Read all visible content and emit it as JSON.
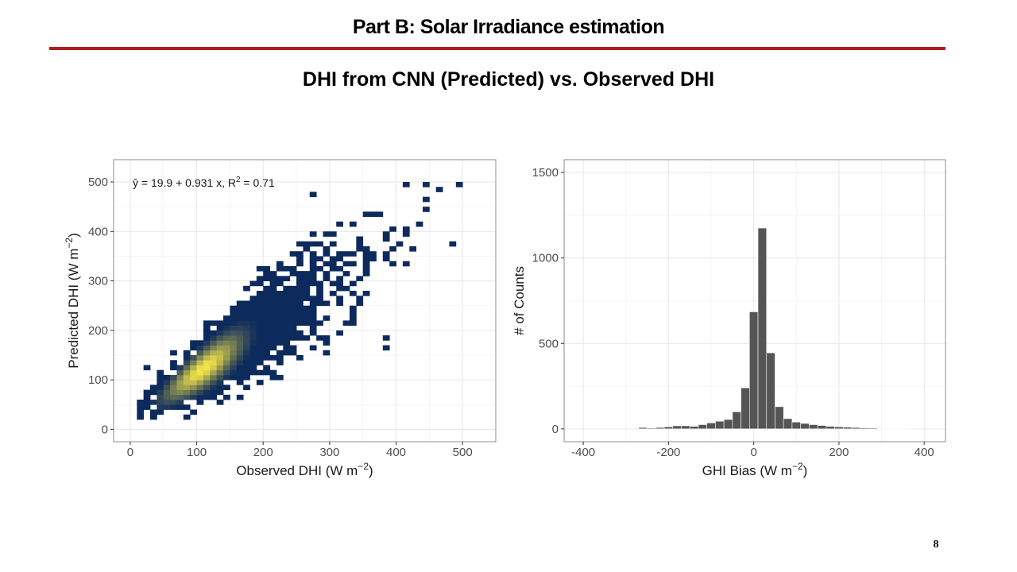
{
  "slide": {
    "title": "Part B: Solar Irradiance estimation",
    "subtitle": "DHI from CNN (Predicted) vs. Observed DHI",
    "page_number": "8",
    "accent_color": "#b01e1e"
  },
  "chart_data": [
    {
      "type": "heatmap",
      "subtype": "2d-histogram-scatter",
      "title": "",
      "xlabel": "Observed DHI (W m⁻²)",
      "ylabel": "Predicted DHI (W m⁻²)",
      "xlim": [
        -25,
        550
      ],
      "ylim": [
        -25,
        545
      ],
      "xticks": [
        0,
        100,
        200,
        300,
        400,
        500
      ],
      "yticks": [
        0,
        100,
        200,
        300,
        400,
        500
      ],
      "grid": true,
      "bin_width": 10,
      "color_low": "#0d2a5c",
      "color_high": "#f2e34a",
      "annotation": {
        "text": "ŷ = 19.9 + 0.931 x, R² = 0.71",
        "intercept": 19.9,
        "slope": 0.931,
        "r2": 0.71
      }
    },
    {
      "type": "bar",
      "subtype": "histogram",
      "title": "",
      "xlabel": "GHI Bias (W m⁻²)",
      "ylabel": "# of Counts",
      "xlim": [
        -445,
        450
      ],
      "ylim": [
        -75,
        1575
      ],
      "xticks": [
        -400,
        -200,
        0,
        200,
        400
      ],
      "yticks": [
        0,
        500,
        1000,
        1500
      ],
      "grid": true,
      "bar_color": "#555555",
      "bin_width": 20,
      "bin_centers": [
        -260,
        -240,
        -220,
        -200,
        -180,
        -160,
        -140,
        -120,
        -100,
        -80,
        -60,
        -40,
        -20,
        0,
        20,
        40,
        60,
        80,
        100,
        120,
        140,
        160,
        180,
        200,
        220,
        240,
        260,
        280,
        300,
        320,
        340,
        360
      ],
      "counts": [
        8,
        5,
        8,
        12,
        18,
        18,
        15,
        25,
        35,
        45,
        55,
        100,
        240,
        685,
        1175,
        445,
        130,
        60,
        40,
        32,
        25,
        20,
        15,
        12,
        10,
        8,
        6,
        5,
        3,
        3,
        3,
        3
      ]
    }
  ]
}
